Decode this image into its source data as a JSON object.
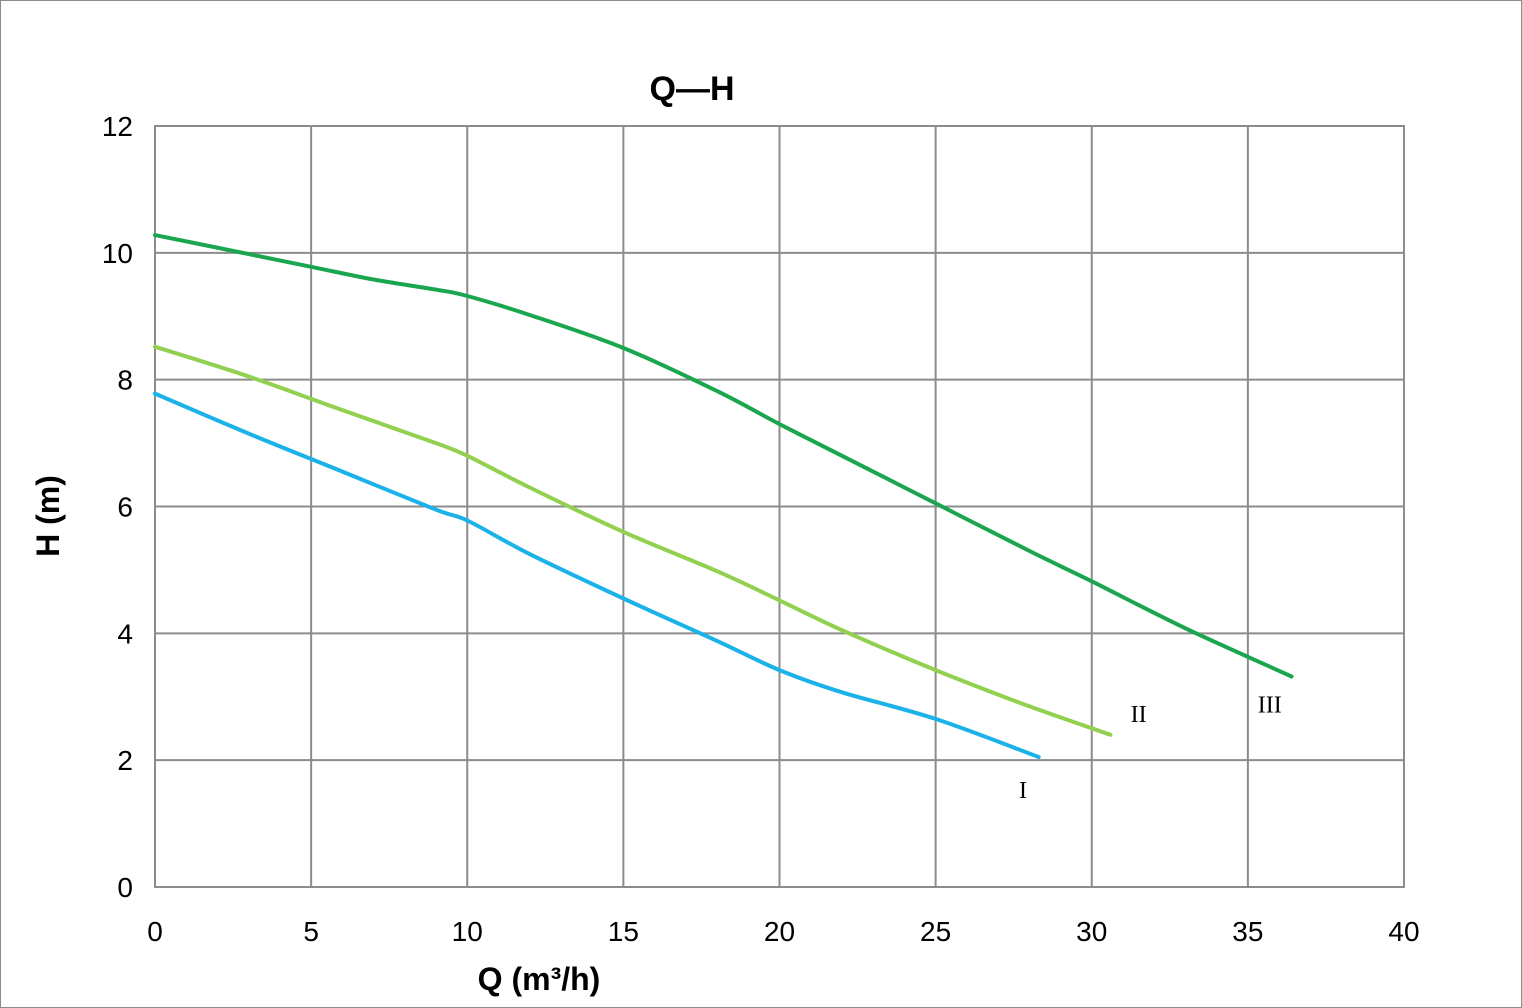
{
  "chart_data": {
    "type": "line",
    "title": "Q—H",
    "xlabel": "Q (m³/h)",
    "ylabel": "H (m)",
    "xlim": [
      0,
      40
    ],
    "ylim": [
      0,
      12
    ],
    "xticks": [
      "0",
      "5",
      "10",
      "15",
      "20",
      "25",
      "30",
      "35",
      "40"
    ],
    "yticks": [
      "0",
      "2",
      "4",
      "6",
      "8",
      "10",
      "12"
    ],
    "grid": true,
    "legend": "none",
    "series": [
      {
        "name": "I",
        "color": "#1ab2e8",
        "x": [
          0,
          3,
          6,
          9,
          10,
          12,
          15,
          18,
          20,
          22,
          25,
          28.3
        ],
        "y": [
          7.78,
          7.15,
          6.55,
          5.95,
          5.78,
          5.25,
          4.55,
          3.88,
          3.42,
          3.07,
          2.65,
          2.05
        ]
      },
      {
        "name": "II",
        "color": "#92d050",
        "x": [
          0,
          3,
          6,
          9,
          10,
          12,
          15,
          18,
          20,
          22,
          25,
          28,
          30.6
        ],
        "y": [
          8.52,
          8.05,
          7.52,
          7.0,
          6.8,
          6.3,
          5.6,
          4.98,
          4.52,
          4.05,
          3.42,
          2.85,
          2.4
        ]
      },
      {
        "name": "III",
        "color": "#1aa64f",
        "x": [
          0,
          3,
          5,
          7,
          9,
          10,
          12,
          15,
          18,
          20,
          22,
          25,
          28,
          30,
          33,
          36.4
        ],
        "y": [
          10.28,
          9.98,
          9.78,
          9.58,
          9.42,
          9.32,
          9.02,
          8.5,
          7.82,
          7.3,
          6.8,
          6.05,
          5.3,
          4.82,
          4.08,
          3.32
        ]
      }
    ],
    "annotations": [
      {
        "text": "I",
        "x": 27.8,
        "y": 1.4
      },
      {
        "text": "II",
        "x": 31.5,
        "y": 2.6
      },
      {
        "text": "III",
        "x": 35.7,
        "y": 2.75
      }
    ]
  }
}
